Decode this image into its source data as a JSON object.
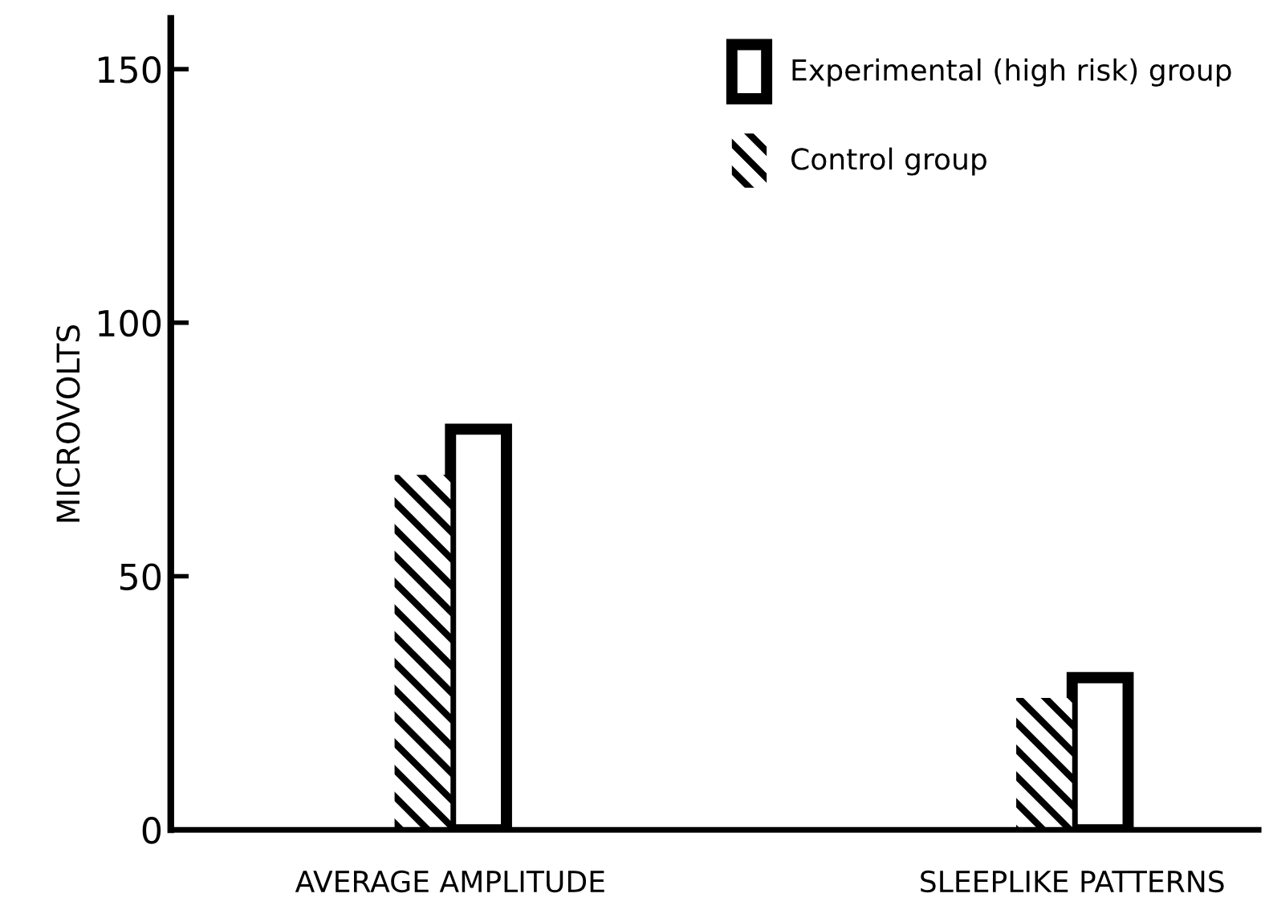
{
  "chart_data": {
    "type": "bar",
    "ylabel": "MICROVOLTS",
    "categories": [
      "AVERAGE AMPLITUDE",
      "SLEEPLIKE PATTERNS"
    ],
    "series": [
      {
        "name": "Experimental (high risk) group",
        "color": "#ffffff",
        "values": [
          79,
          30
        ]
      },
      {
        "name": "Control group",
        "color": "#000000",
        "values": [
          70,
          26
        ]
      }
    ],
    "ylim": [
      0,
      160
    ],
    "yticks": [
      0,
      50,
      100,
      150
    ],
    "grid": false,
    "legend": "top right"
  }
}
